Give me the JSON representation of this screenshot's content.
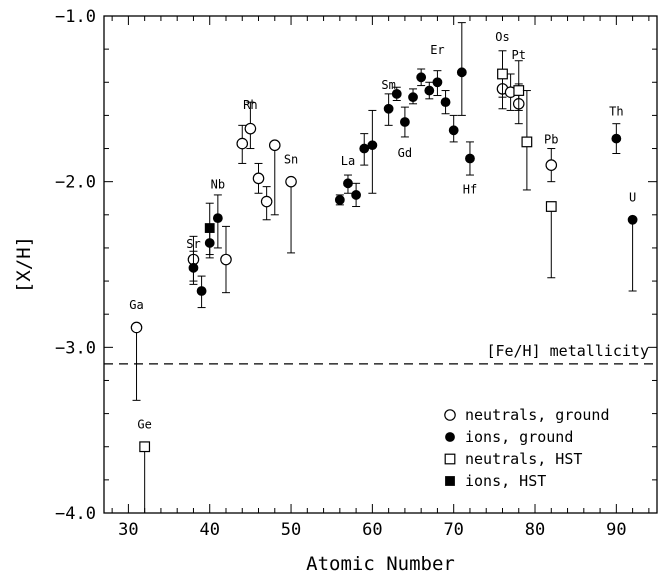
{
  "chart_data": {
    "type": "scatter",
    "xlabel": "Atomic Number",
    "ylabel": "[X/H]",
    "xlim": [
      27,
      95
    ],
    "ylim": [
      -4.0,
      -1.0
    ],
    "x_ticks": [
      30,
      40,
      50,
      60,
      70,
      80,
      90
    ],
    "y_ticks": [
      -4.0,
      -3.0,
      -2.0,
      -1.0
    ],
    "x_tick_labels": [
      "30",
      "40",
      "50",
      "60",
      "70",
      "80",
      "90"
    ],
    "y_tick_labels": [
      "−4.0",
      "−3.0",
      "−2.0",
      "−1.0"
    ],
    "reference_line": {
      "y": -3.1,
      "label": "[Fe/H] metallicity",
      "style": "dashed"
    },
    "legend": {
      "placement": "bottom-right",
      "entries": [
        {
          "series": "neutrals_ground",
          "label": "neutrals, ground"
        },
        {
          "series": "ions_ground",
          "label": "ions, ground"
        },
        {
          "series": "neutrals_hst",
          "label": "neutrals, HST"
        },
        {
          "series": "ions_hst",
          "label": "ions, HST"
        }
      ]
    },
    "series": [
      {
        "id": "neutrals_ground",
        "name": "neutrals, ground",
        "marker": "open-circle",
        "points": [
          {
            "x": 31,
            "y": -2.88,
            "lo": -3.32,
            "hi": -2.88
          },
          {
            "x": 38,
            "y": -2.47,
            "lo": -2.6,
            "hi": -2.33
          },
          {
            "x": 42,
            "y": -2.47,
            "lo": -2.67,
            "hi": -2.27
          },
          {
            "x": 44,
            "y": -1.77,
            "lo": -1.89,
            "hi": -1.66
          },
          {
            "x": 45,
            "y": -1.68,
            "lo": -1.8,
            "hi": -1.52
          },
          {
            "x": 46,
            "y": -1.98,
            "lo": -2.07,
            "hi": -1.89
          },
          {
            "x": 47,
            "y": -2.12,
            "lo": -2.23,
            "hi": -2.03
          },
          {
            "x": 48,
            "y": -1.78,
            "lo": -2.2,
            "hi": -1.78
          },
          {
            "x": 50,
            "y": -2.0,
            "lo": -2.43,
            "hi": -2.0
          },
          {
            "x": 76,
            "y": -1.44,
            "lo": -1.56,
            "hi": -1.33
          },
          {
            "x": 77,
            "y": -1.46,
            "lo": -1.57,
            "hi": -1.35
          },
          {
            "x": 78,
            "y": -1.53,
            "lo": -1.65,
            "hi": -1.41
          },
          {
            "x": 82,
            "y": -1.9,
            "lo": -2.0,
            "hi": -1.8
          }
        ]
      },
      {
        "id": "ions_ground",
        "name": "ions, ground",
        "marker": "filled-circle",
        "points": [
          {
            "x": 38,
            "y": -2.52,
            "lo": -2.62,
            "hi": -2.42
          },
          {
            "x": 39,
            "y": -2.66,
            "lo": -2.76,
            "hi": -2.57
          },
          {
            "x": 40,
            "y": -2.37,
            "lo": -2.46,
            "hi": -2.28
          },
          {
            "x": 41,
            "y": -2.22,
            "lo": -2.4,
            "hi": -2.08
          },
          {
            "x": 56,
            "y": -2.11,
            "lo": -2.14,
            "hi": -2.08
          },
          {
            "x": 57,
            "y": -2.01,
            "lo": -2.07,
            "hi": -1.96
          },
          {
            "x": 58,
            "y": -2.08,
            "lo": -2.15,
            "hi": -2.01
          },
          {
            "x": 59,
            "y": -1.8,
            "lo": -1.9,
            "hi": -1.71
          },
          {
            "x": 60,
            "y": -1.78,
            "lo": -2.07,
            "hi": -1.57
          },
          {
            "x": 62,
            "y": -1.56,
            "lo": -1.66,
            "hi": -1.47
          },
          {
            "x": 63,
            "y": -1.47,
            "lo": -1.51,
            "hi": -1.43
          },
          {
            "x": 64,
            "y": -1.64,
            "lo": -1.73,
            "hi": -1.55
          },
          {
            "x": 65,
            "y": -1.49,
            "lo": -1.53,
            "hi": -1.44
          },
          {
            "x": 66,
            "y": -1.37,
            "lo": -1.42,
            "hi": -1.32
          },
          {
            "x": 67,
            "y": -1.45,
            "lo": -1.5,
            "hi": -1.4
          },
          {
            "x": 68,
            "y": -1.4,
            "lo": -1.48,
            "hi": -1.33
          },
          {
            "x": 69,
            "y": -1.52,
            "lo": -1.59,
            "hi": -1.45
          },
          {
            "x": 70,
            "y": -1.69,
            "lo": -1.76,
            "hi": -1.6
          },
          {
            "x": 71,
            "y": -1.34,
            "lo": -1.6,
            "hi": -1.04
          },
          {
            "x": 72,
            "y": -1.86,
            "lo": -1.96,
            "hi": -1.76
          },
          {
            "x": 90,
            "y": -1.74,
            "lo": -1.83,
            "hi": -1.65
          },
          {
            "x": 92,
            "y": -2.23,
            "lo": -2.66,
            "hi": -2.23
          }
        ]
      },
      {
        "id": "neutrals_hst",
        "name": "neutrals, HST",
        "marker": "open-square",
        "points": [
          {
            "x": 32,
            "y": -3.6,
            "lo": -4.05,
            "hi": -3.6
          },
          {
            "x": 76,
            "y": -1.35,
            "lo": -1.49,
            "hi": -1.21
          },
          {
            "x": 78,
            "y": -1.45,
            "lo": -1.57,
            "hi": -1.27
          },
          {
            "x": 79,
            "y": -1.76,
            "lo": -2.05,
            "hi": -1.45
          },
          {
            "x": 82,
            "y": -2.15,
            "lo": -2.58,
            "hi": -2.15
          }
        ]
      },
      {
        "id": "ions_hst",
        "name": "ions, HST",
        "marker": "filled-square",
        "points": [
          {
            "x": 40,
            "y": -2.28,
            "lo": -2.44,
            "hi": -2.13
          }
        ]
      }
    ],
    "element_labels": [
      {
        "text": "Ga",
        "x": 31,
        "y": -2.77
      },
      {
        "text": "Ge",
        "x": 32,
        "y": -3.49
      },
      {
        "text": "Sr",
        "x": 38,
        "y": -2.4
      },
      {
        "text": "Nb",
        "x": 41,
        "y": -2.04
      },
      {
        "text": "Rh",
        "x": 45,
        "y": -1.56
      },
      {
        "text": "Sn",
        "x": 50,
        "y": -1.89
      },
      {
        "text": "La",
        "x": 57,
        "y": -1.9
      },
      {
        "text": "Sm",
        "x": 62,
        "y": -1.44
      },
      {
        "text": "Gd",
        "x": 64,
        "y": -1.85
      },
      {
        "text": "Er",
        "x": 68,
        "y": -1.23
      },
      {
        "text": "Hf",
        "x": 72,
        "y": -2.07
      },
      {
        "text": "Os",
        "x": 76,
        "y": -1.15
      },
      {
        "text": "Pt",
        "x": 78,
        "y": -1.26
      },
      {
        "text": "Pb",
        "x": 82,
        "y": -1.77
      },
      {
        "text": "Th",
        "x": 90,
        "y": -1.6
      },
      {
        "text": "U",
        "x": 92,
        "y": -2.12
      }
    ]
  }
}
